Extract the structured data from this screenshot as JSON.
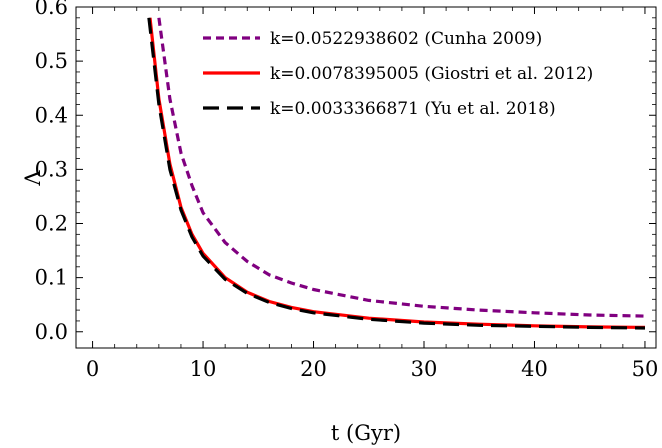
{
  "chart_data": {
    "type": "line",
    "xlabel": "t (Gyr)",
    "ylabel": "Λ",
    "xlim": [
      -1.5,
      51
    ],
    "ylim": [
      -0.03,
      0.6
    ],
    "x_ticks": [
      0,
      10,
      20,
      30,
      40,
      50
    ],
    "y_ticks": [
      0.0,
      0.1,
      0.2,
      0.3,
      0.4,
      0.5,
      0.6
    ],
    "x_tick_labels": [
      "0",
      "10",
      "20",
      "30",
      "40",
      "50"
    ],
    "y_tick_labels": [
      "0.0",
      "0.1",
      "0.2",
      "0.3",
      "0.4",
      "0.5",
      "0.6"
    ],
    "grid": false,
    "legend_position": "top-right",
    "series": [
      {
        "name": "k=0.0522938602 (Cunha 2009)",
        "color": "#800080",
        "style": "dashed-short",
        "points": [
          [
            6.0,
            0.58
          ],
          [
            7,
            0.43
          ],
          [
            8,
            0.33
          ],
          [
            9,
            0.27
          ],
          [
            10,
            0.22
          ],
          [
            12,
            0.165
          ],
          [
            14,
            0.13
          ],
          [
            16,
            0.105
          ],
          [
            18,
            0.09
          ],
          [
            20,
            0.078
          ],
          [
            25,
            0.058
          ],
          [
            30,
            0.047
          ],
          [
            35,
            0.04
          ],
          [
            40,
            0.035
          ],
          [
            45,
            0.031
          ],
          [
            50,
            0.029
          ]
        ]
      },
      {
        "name": "k=0.0078395005 (Giostri et al. 2012)",
        "color": "#ff0000",
        "style": "solid",
        "points": [
          [
            5.2,
            0.58
          ],
          [
            6,
            0.43
          ],
          [
            7,
            0.31
          ],
          [
            8,
            0.23
          ],
          [
            9,
            0.18
          ],
          [
            10,
            0.145
          ],
          [
            12,
            0.1
          ],
          [
            14,
            0.073
          ],
          [
            16,
            0.056
          ],
          [
            18,
            0.045
          ],
          [
            20,
            0.037
          ],
          [
            25,
            0.025
          ],
          [
            30,
            0.018
          ],
          [
            35,
            0.014
          ],
          [
            40,
            0.011
          ],
          [
            45,
            0.009
          ],
          [
            50,
            0.008
          ]
        ]
      },
      {
        "name": "k=0.0033366871 (Yu et al. 2018)",
        "color": "#000000",
        "style": "dashed-long",
        "points": [
          [
            5.1,
            0.58
          ],
          [
            6,
            0.42
          ],
          [
            7,
            0.3
          ],
          [
            8,
            0.225
          ],
          [
            9,
            0.175
          ],
          [
            10,
            0.14
          ],
          [
            12,
            0.097
          ],
          [
            14,
            0.071
          ],
          [
            16,
            0.054
          ],
          [
            18,
            0.043
          ],
          [
            20,
            0.035
          ],
          [
            25,
            0.023
          ],
          [
            30,
            0.016
          ],
          [
            35,
            0.012
          ],
          [
            40,
            0.01
          ],
          [
            45,
            0.008
          ],
          [
            50,
            0.007
          ]
        ]
      }
    ]
  }
}
